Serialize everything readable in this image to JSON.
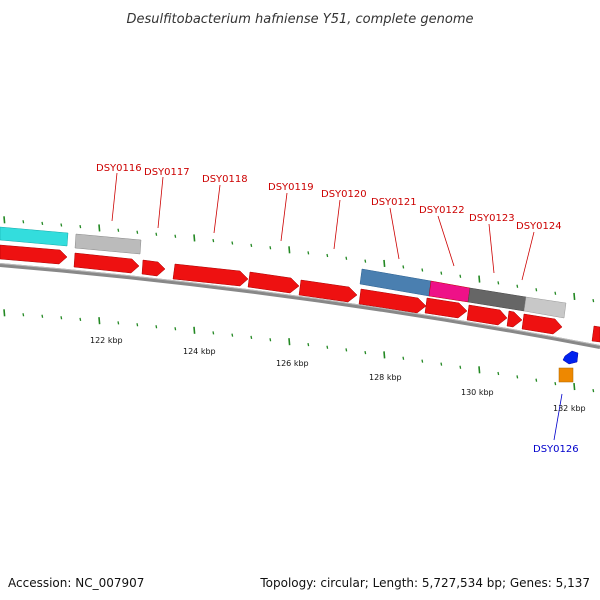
{
  "title": "Desulfitobacterium hafniense Y51, complete genome",
  "footer": {
    "accession": "Accession: NC_007907",
    "summary": "Topology: circular; Length: 5,727,534 bp; Genes: 5,137"
  },
  "gene_labels": [
    {
      "id": "DSY0116",
      "color": "#cc0000"
    },
    {
      "id": "DSY0117",
      "color": "#cc0000"
    },
    {
      "id": "DSY0118",
      "color": "#cc0000"
    },
    {
      "id": "DSY0119",
      "color": "#cc0000"
    },
    {
      "id": "DSY0120",
      "color": "#cc0000"
    },
    {
      "id": "DSY0121",
      "color": "#cc0000"
    },
    {
      "id": "DSY0122",
      "color": "#cc0000"
    },
    {
      "id": "DSY0123",
      "color": "#cc0000"
    },
    {
      "id": "DSY0124",
      "color": "#cc0000"
    },
    {
      "id": "DSY0126",
      "color": "#0000cc"
    }
  ],
  "kbp_labels": [
    "122 kbp",
    "124 kbp",
    "126 kbp",
    "128 kbp",
    "130 kbp",
    "132 kbp"
  ],
  "colors": {
    "forward_gene": "#ee1111",
    "cyan_feature": "#33dddd",
    "grey_feature": "#bbbbbb",
    "steelblue_feature": "#4a7fb0",
    "magenta_feature": "#ee1188",
    "darkgrey_feature": "#666666",
    "blue_feature": "#0022ee",
    "orange_feature": "#ee8800",
    "tick": "#228822",
    "backbone": "#888888"
  }
}
